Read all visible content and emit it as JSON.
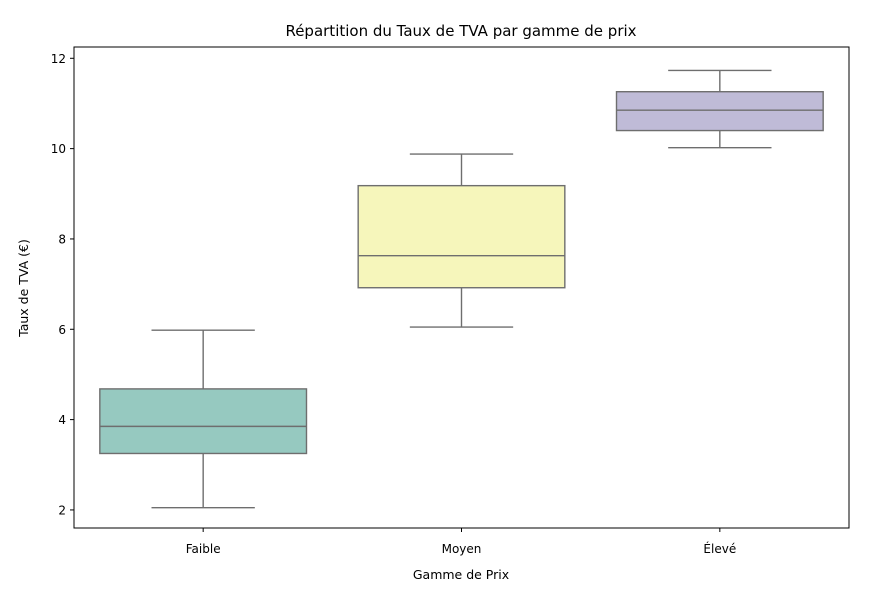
{
  "chart_data": {
    "type": "box",
    "title": "Répartition du Taux de TVA par gamme de prix",
    "xlabel": "Gamme de Prix",
    "ylabel": "Taux de TVA (€)",
    "ylim": [
      1.6,
      12.25
    ],
    "yticks": [
      2,
      4,
      6,
      8,
      10,
      12
    ],
    "grid": false,
    "categories": [
      "Faible",
      "Moyen",
      "Élevé"
    ],
    "boxes": [
      {
        "category": "Faible",
        "whisker_low": 2.05,
        "q1": 3.25,
        "median": 3.85,
        "q3": 4.68,
        "whisker_high": 5.98,
        "color": "#96c9c0"
      },
      {
        "category": "Moyen",
        "whisker_low": 6.05,
        "q1": 6.92,
        "median": 7.63,
        "q3": 9.18,
        "whisker_high": 9.88,
        "color": "#f6f6bb"
      },
      {
        "category": "Élevé",
        "whisker_low": 10.02,
        "q1": 10.4,
        "median": 10.85,
        "q3": 11.26,
        "whisker_high": 11.73,
        "color": "#bfbbd7"
      }
    ]
  }
}
